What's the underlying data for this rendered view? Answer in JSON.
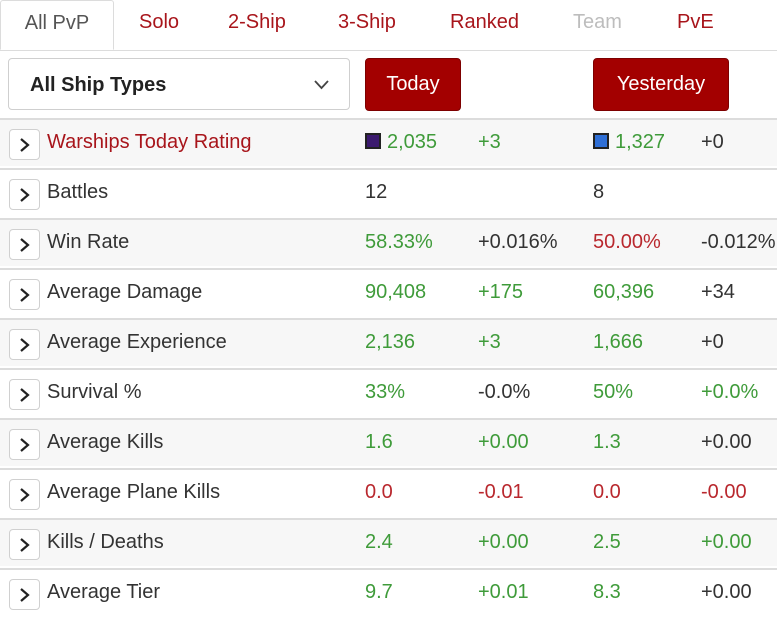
{
  "tabs": [
    {
      "label": "All PvP"
    },
    {
      "label": "Solo"
    },
    {
      "label": "2-Ship"
    },
    {
      "label": "3-Ship"
    },
    {
      "label": "Ranked"
    },
    {
      "label": "Team"
    },
    {
      "label": "PvE"
    }
  ],
  "filter": {
    "selected": "All Ship Types"
  },
  "buttons": {
    "today": "Today",
    "yesterday": "Yesterday"
  },
  "colors": {
    "accent": "#a30000",
    "good": "#3f9b3a",
    "bad": "#b9282e",
    "badge_today": "#3b1a6e",
    "badge_yesterday": "#2f6fd6"
  },
  "rows": [
    {
      "label": "Warships Today Rating",
      "today": "2,035",
      "today_delta": "+3",
      "yesterday": "1,327",
      "yesterday_delta": "+0"
    },
    {
      "label": "Battles",
      "today": "12",
      "today_delta": "",
      "yesterday": "8",
      "yesterday_delta": ""
    },
    {
      "label": "Win Rate",
      "today": "58.33%",
      "today_delta": "+0.016%",
      "yesterday": "50.00%",
      "yesterday_delta": "-0.012%"
    },
    {
      "label": "Average Damage",
      "today": "90,408",
      "today_delta": "+175",
      "yesterday": "60,396",
      "yesterday_delta": "+34"
    },
    {
      "label": "Average Experience",
      "today": "2,136",
      "today_delta": "+3",
      "yesterday": "1,666",
      "yesterday_delta": "+0"
    },
    {
      "label": "Survival %",
      "today": "33%",
      "today_delta": "-0.0%",
      "yesterday": "50%",
      "yesterday_delta": "+0.0%"
    },
    {
      "label": "Average Kills",
      "today": "1.6",
      "today_delta": "+0.00",
      "yesterday": "1.3",
      "yesterday_delta": "+0.00"
    },
    {
      "label": "Average Plane Kills",
      "today": "0.0",
      "today_delta": "-0.01",
      "yesterday": "0.0",
      "yesterday_delta": "-0.00"
    },
    {
      "label": "Kills / Deaths",
      "today": "2.4",
      "today_delta": "+0.00",
      "yesterday": "2.5",
      "yesterday_delta": "+0.00"
    },
    {
      "label": "Average Tier",
      "today": "9.7",
      "today_delta": "+0.01",
      "yesterday": "8.3",
      "yesterday_delta": "+0.00"
    }
  ]
}
